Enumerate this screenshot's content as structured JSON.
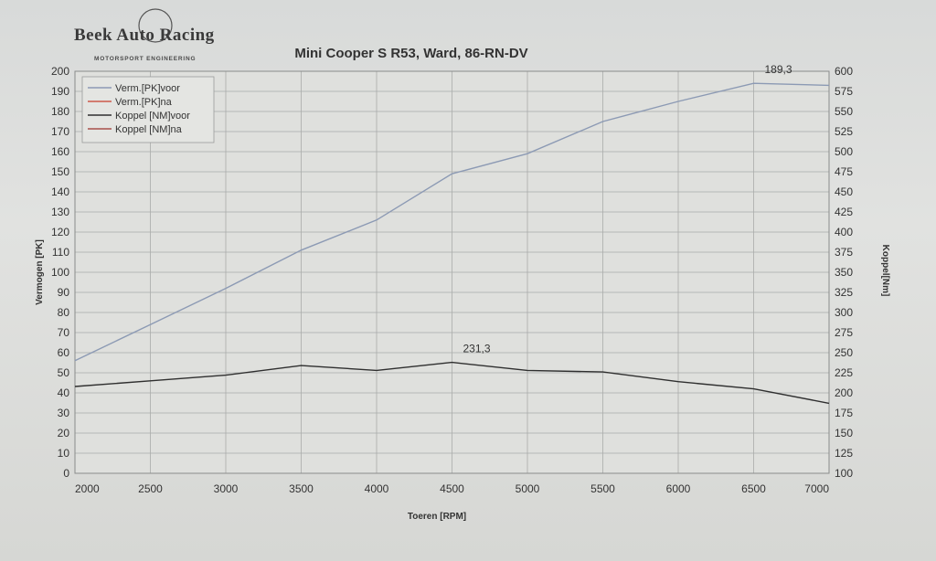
{
  "logo": {
    "name": "Beek Auto Racing",
    "tagline": "MOTORSPORT ENGINEERING"
  },
  "chart_data": {
    "type": "line",
    "title": "Mini Cooper S R53, Ward, 86-RN-DV",
    "xlabel": "Toeren [RPM]",
    "ylabel_left": "Vermogen [PK]",
    "ylabel_right": "Koppel[Nm]",
    "xlim": [
      2000,
      7000
    ],
    "ylim_left": [
      0,
      200
    ],
    "ylim_right": [
      100,
      600
    ],
    "x_ticks": [
      2000,
      2500,
      3000,
      3500,
      4000,
      4500,
      5000,
      5500,
      6000,
      6500,
      7000
    ],
    "y_left_ticks": [
      0,
      10,
      20,
      30,
      40,
      50,
      60,
      70,
      80,
      90,
      100,
      110,
      120,
      130,
      140,
      150,
      160,
      170,
      180,
      190,
      200
    ],
    "y_right_ticks": [
      100,
      125,
      150,
      175,
      200,
      225,
      250,
      275,
      300,
      325,
      350,
      375,
      400,
      425,
      450,
      475,
      500,
      525,
      550,
      575,
      600
    ],
    "grid": true,
    "legend_position": "top-left",
    "legend": [
      "Verm.[PK]voor",
      "Verm.[PK]na",
      "Koppel [NM]voor",
      "Koppel [NM]na"
    ],
    "series": [
      {
        "name": "Verm.[PK]voor",
        "axis": "left",
        "color": "#8c9ab4",
        "x": [
          2000,
          2500,
          3000,
          3500,
          4000,
          4500,
          5000,
          5500,
          6000,
          6500,
          7000
        ],
        "y": [
          56,
          74,
          92,
          111,
          126,
          149,
          159,
          175,
          185,
          194,
          193
        ]
      },
      {
        "name": "Verm.[PK]na",
        "axis": "left",
        "color": "#cc5a4a",
        "x": [],
        "y": []
      },
      {
        "name": "Koppel [NM]voor",
        "axis": "right",
        "color": "#2f2f2f",
        "x": [
          2000,
          2500,
          3000,
          3500,
          4000,
          4500,
          5000,
          5500,
          6000,
          6500,
          7000
        ],
        "y": [
          208,
          215,
          222,
          234,
          228,
          238,
          228,
          226,
          214,
          205,
          187
        ]
      },
      {
        "name": "Koppel [NM]na",
        "axis": "right",
        "color": "#a8504a",
        "x": [],
        "y": []
      }
    ],
    "annotations": [
      {
        "text": "189,3",
        "x": 6500,
        "y": 194,
        "axis": "left"
      },
      {
        "text": "231,3",
        "x": 4500,
        "y": 238,
        "axis": "right"
      }
    ]
  }
}
